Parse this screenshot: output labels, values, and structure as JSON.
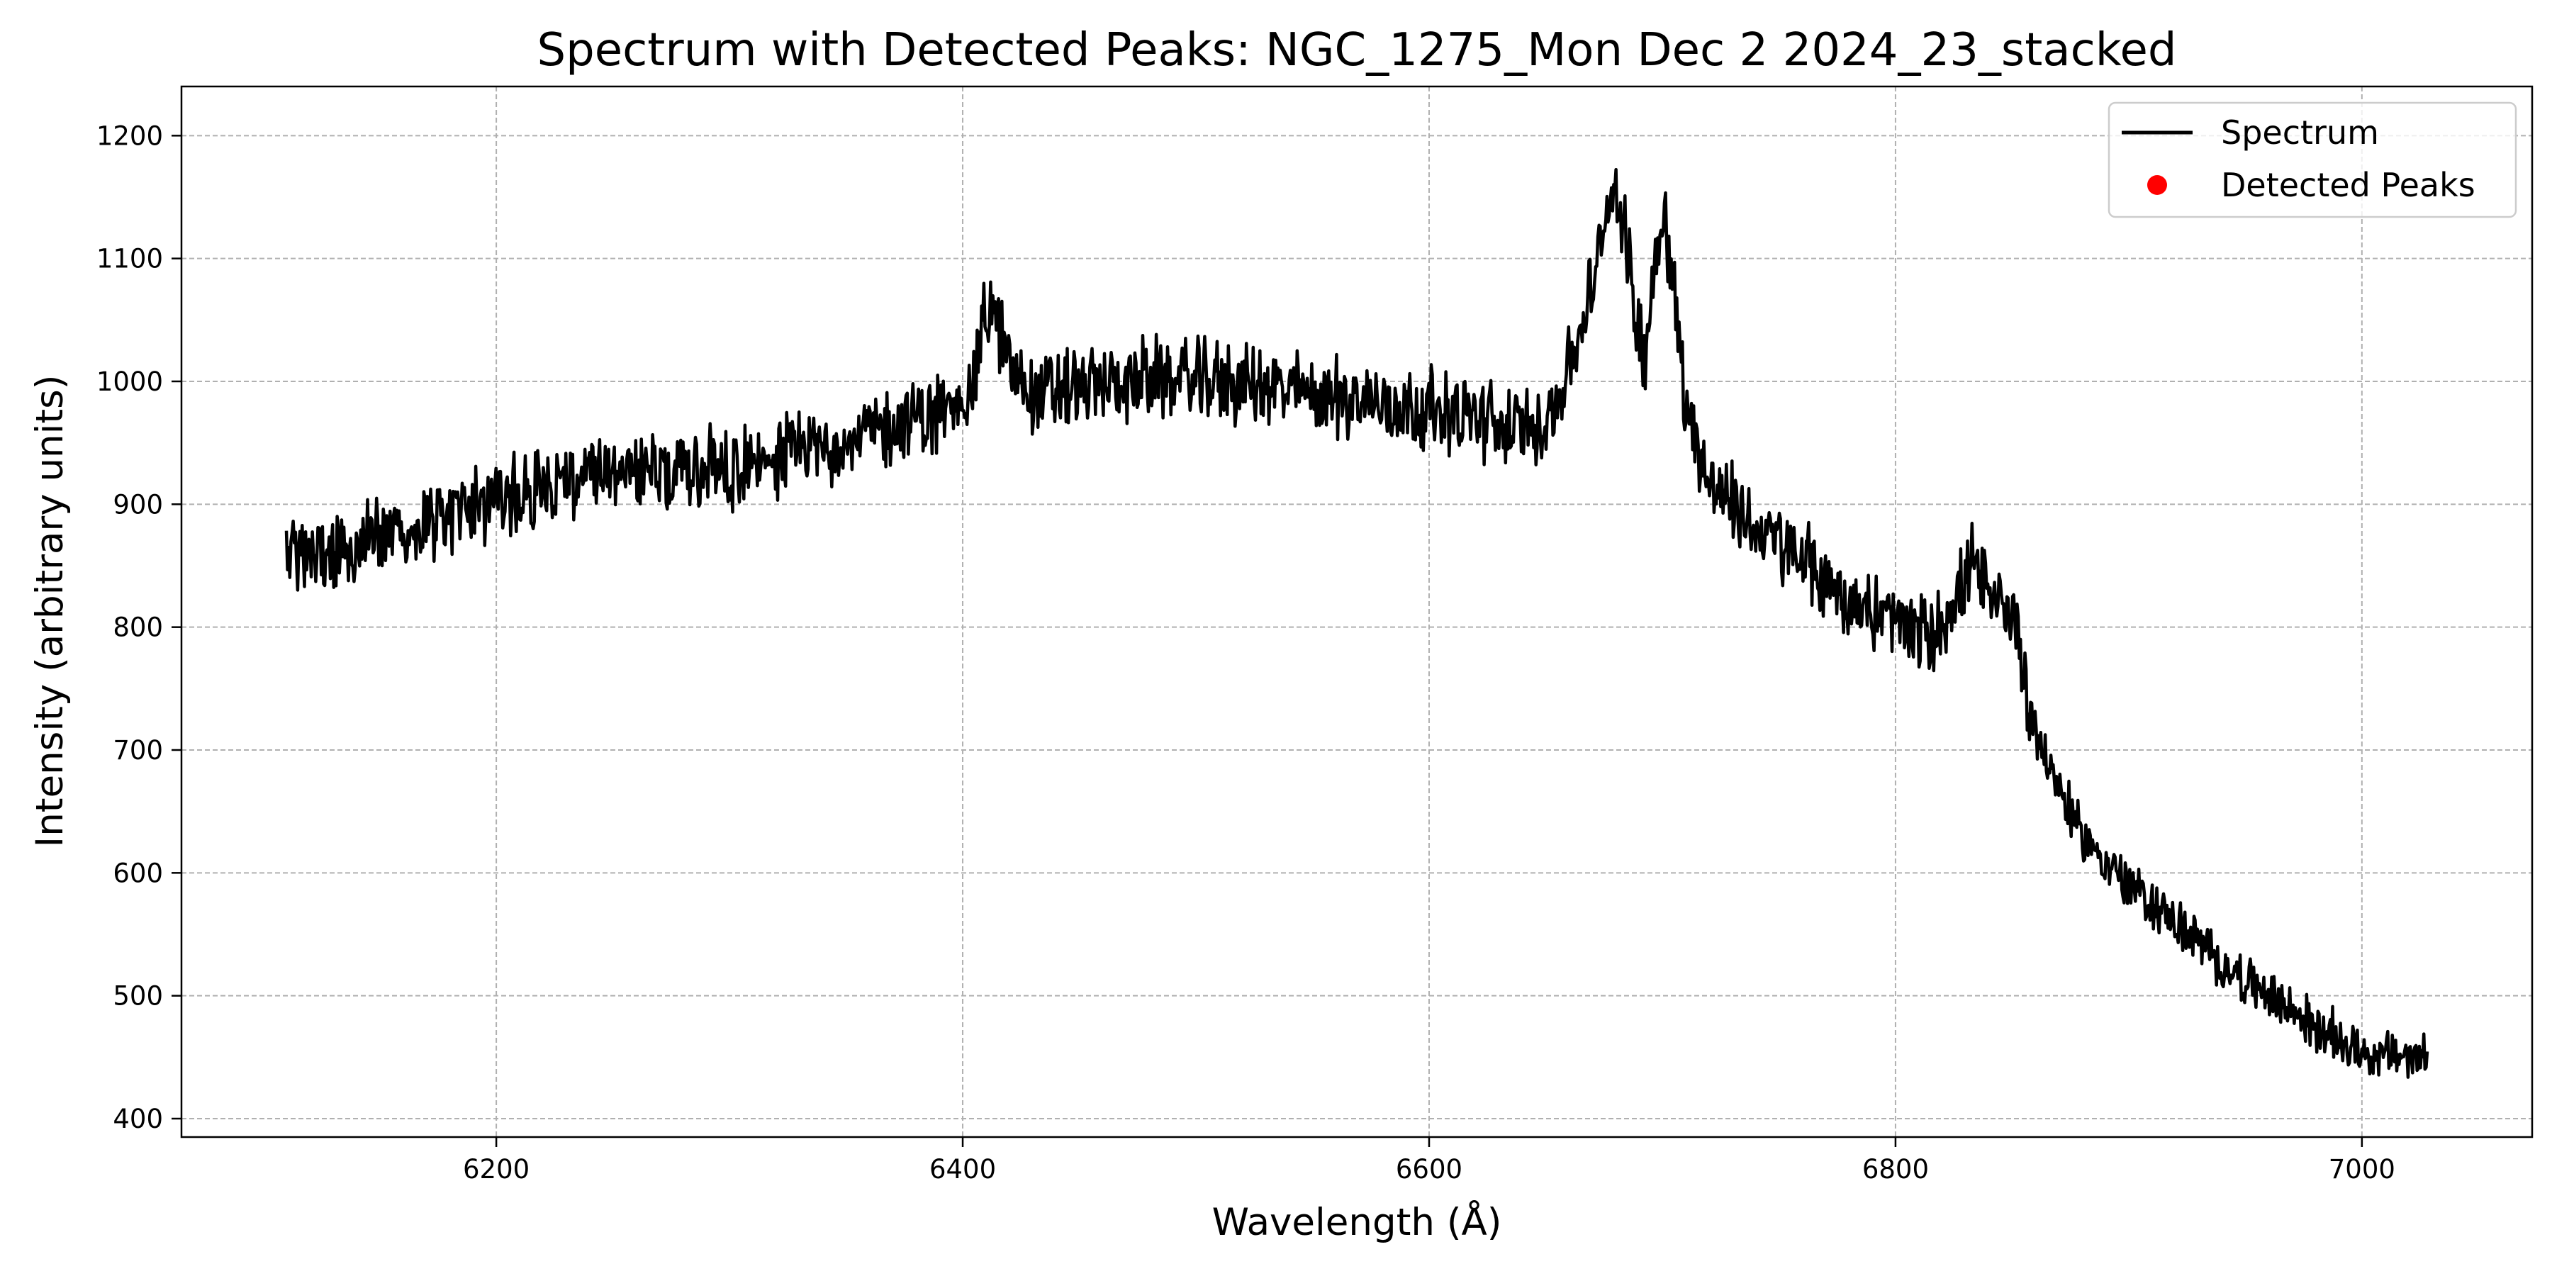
{
  "chart_data": {
    "type": "line",
    "title": "Spectrum with Detected Peaks: NGC_1275_Mon Dec  2 2024_23_stacked",
    "xlabel": "Wavelength (Å)",
    "ylabel": "Intensity (arbitrary units)",
    "xlim": [
      6065,
      7073
    ],
    "ylim": [
      385,
      1240
    ],
    "xticks": [
      6200,
      6400,
      6600,
      6800,
      7000
    ],
    "yticks": [
      400,
      500,
      600,
      700,
      800,
      900,
      1000,
      1100,
      1200
    ],
    "grid": true,
    "legend_position": "top-right",
    "colors": {
      "spectrum": "#000000",
      "peaks": "#ff0000",
      "grid": "#b0b0b0"
    },
    "series": [
      {
        "name": "Spectrum",
        "kind": "line",
        "x": [
          6110,
          6125,
          6140,
          6160,
          6180,
          6200,
          6220,
          6240,
          6260,
          6280,
          6300,
          6320,
          6340,
          6360,
          6380,
          6395,
          6405,
          6410,
          6415,
          6420,
          6430,
          6450,
          6470,
          6490,
          6510,
          6530,
          6550,
          6570,
          6590,
          6610,
          6630,
          6645,
          6655,
          6665,
          6672,
          6676,
          6680,
          6684,
          6688,
          6692,
          6696,
          6700,
          6704,
          6710,
          6720,
          6740,
          6760,
          6780,
          6800,
          6815,
          6825,
          6833,
          6838,
          6843,
          6848,
          6852,
          6858,
          6865,
          6880,
          6900,
          6920,
          6940,
          6960,
          6980,
          7000,
          7015,
          7028
        ],
        "y": [
          858,
          860,
          868,
          877,
          892,
          905,
          915,
          920,
          925,
          928,
          932,
          938,
          947,
          958,
          968,
          978,
          1000,
          1060,
          1045,
          1015,
          990,
          995,
          1000,
          1003,
          1000,
          995,
          990,
          985,
          980,
          975,
          965,
          960,
          985,
          1040,
          1090,
          1140,
          1160,
          1120,
          1060,
          1020,
          1080,
          1150,
          1090,
          980,
          920,
          880,
          855,
          820,
          805,
          790,
          820,
          850,
          830,
          815,
          820,
          800,
          730,
          690,
          630,
          590,
          560,
          525,
          500,
          475,
          455,
          450,
          450
        ]
      },
      {
        "name": "Detected Peaks",
        "kind": "scatter",
        "x": [],
        "y": []
      }
    ]
  }
}
